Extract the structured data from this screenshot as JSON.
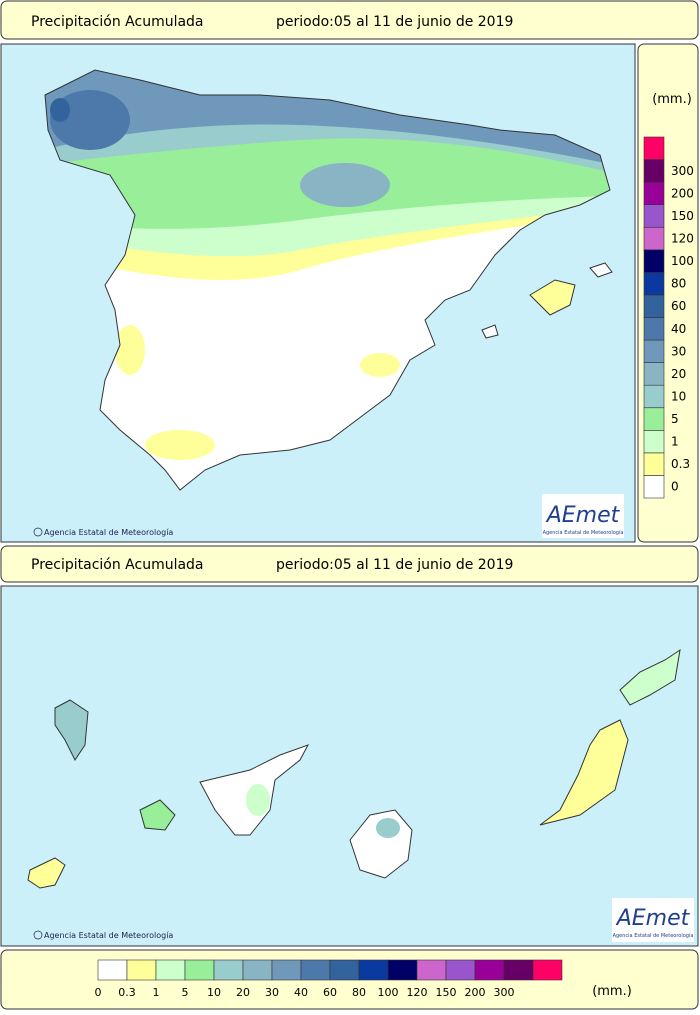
{
  "header": {
    "title": "Precipitación Acumulada",
    "period": "periodo:05 al 11 de junio de 2019"
  },
  "credit": "Agencia Estatal de Meteorología",
  "logo": {
    "name": "AEmet",
    "subtitle": "Agencia Estatal de Meteorología"
  },
  "legend": {
    "unit": "(mm.)",
    "labels": [
      0,
      0.3,
      1,
      5,
      10,
      20,
      30,
      40,
      60,
      80,
      100,
      120,
      150,
      200,
      300
    ],
    "colors": [
      "#ffffff",
      "#ffff99",
      "#ccffcc",
      "#99ee99",
      "#99cccc",
      "#88b4c4",
      "#6f98bb",
      "#4d78aa",
      "#33639c",
      "#0a3aa0",
      "#000066",
      "#cc66cc",
      "#9955cc",
      "#990099",
      "#660066",
      "#ff0066"
    ]
  }
}
